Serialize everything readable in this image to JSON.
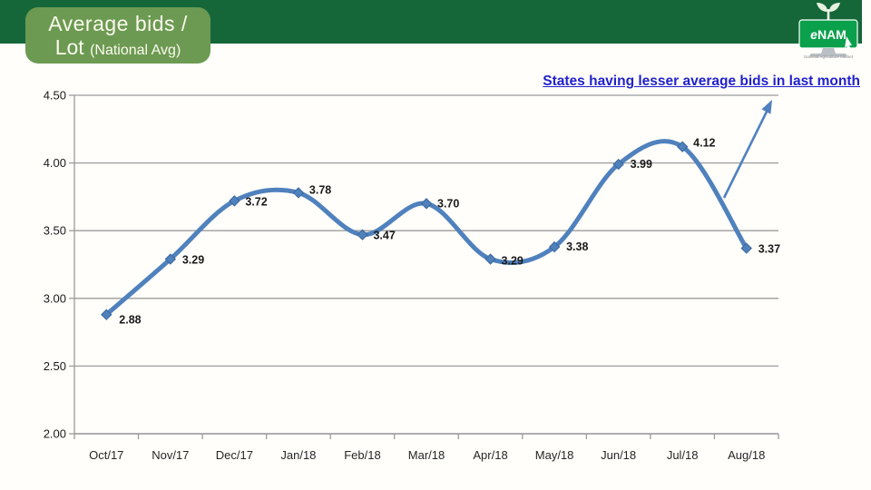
{
  "header": {
    "title_line1": "Average bids /",
    "title_line2_main": "Lot ",
    "title_line2_sub": "(National Avg)",
    "bar_color": "#15673a",
    "title_box_color": "#6c9a52"
  },
  "logo": {
    "name_e": "e",
    "name_rest": "NAM",
    "tagline": "National Agriculture Market",
    "monitor_color": "#0aa04c"
  },
  "annotation": {
    "link_text": "States having lesser average bids in last month",
    "link_color": "#2121ce",
    "arrow_color": "#4f81bd"
  },
  "chart_data": {
    "type": "line",
    "smooth": true,
    "title": "Average bids / Lot (National Avg)",
    "categories": [
      "Oct/17",
      "Nov/17",
      "Dec/17",
      "Jan/18",
      "Feb/18",
      "Mar/18",
      "Apr/18",
      "May/18",
      "Jun/18",
      "Jul/18",
      "Aug/18"
    ],
    "values": [
      2.88,
      3.29,
      3.72,
      3.78,
      3.47,
      3.7,
      3.29,
      3.38,
      3.99,
      4.12,
      3.37
    ],
    "data_labels": [
      "2.88",
      "3.29",
      "3.72",
      "3.78",
      "3.47",
      "3.70",
      "3.29",
      "3.38",
      "3.99",
      "4.12",
      "3.37"
    ],
    "yticks": [
      4.5,
      4.0,
      3.5,
      3.0,
      2.5,
      2.0
    ],
    "ytick_labels": [
      "4.50",
      "4.00",
      "3.50",
      "3.00",
      "2.50",
      "2.00"
    ],
    "ylim": [
      2.0,
      4.5
    ],
    "xlabel": "",
    "ylabel": "",
    "grid": true,
    "legend": false,
    "line_color": "#4f81bd",
    "marker": "diamond",
    "grid_color": "#9c9c9c"
  }
}
